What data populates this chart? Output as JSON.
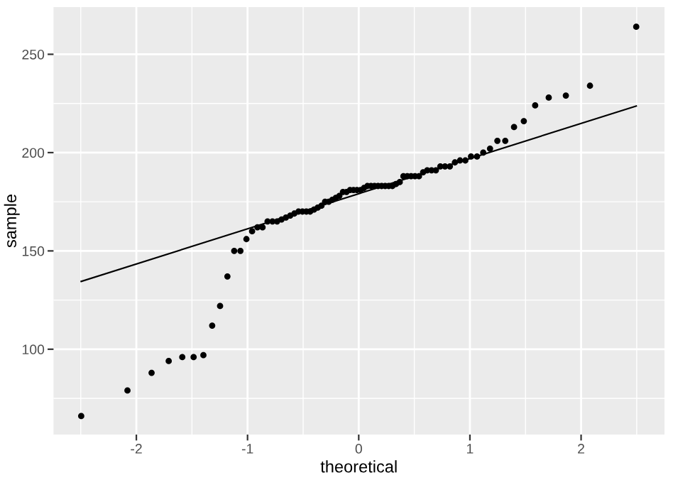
{
  "chart_data": {
    "type": "scatter",
    "xlabel": "theoretical",
    "ylabel": "sample",
    "xlim": [
      -2.745,
      2.75
    ],
    "ylim": [
      56.6,
      274
    ],
    "xticks": [
      {
        "value": -2.5,
        "label": null
      },
      -2,
      {
        "value": -1.5,
        "label": null
      },
      -1,
      {
        "value": -0.5,
        "label": null
      },
      0,
      {
        "value": 0.5,
        "label": null
      },
      1,
      {
        "value": 1.5,
        "label": null
      },
      2,
      {
        "value": 2.5,
        "label": null
      }
    ],
    "yticks": [
      {
        "value": 75,
        "label": null
      },
      100,
      {
        "value": 125,
        "label": null
      },
      150,
      {
        "value": 175,
        "label": null
      },
      200,
      {
        "value": 225,
        "label": null
      },
      250
    ],
    "grid": true,
    "series": [
      {
        "marker": "circle",
        "color": "#000000",
        "x": [
          -2.496,
          -2.08,
          -1.863,
          -1.709,
          -1.587,
          -1.485,
          -1.397,
          -1.318,
          -1.247,
          -1.181,
          -1.12,
          -1.064,
          -1.01,
          -0.959,
          -0.911,
          -0.865,
          -0.82,
          -0.776,
          -0.734,
          -0.694,
          -0.655,
          -0.616,
          -0.579,
          -0.542,
          -0.506,
          -0.471,
          -0.437,
          -0.402,
          -0.369,
          -0.335,
          -0.303,
          -0.27,
          -0.238,
          -0.206,
          -0.174,
          -0.142,
          -0.11,
          -0.078,
          -0.047,
          -0.016,
          0.016,
          0.047,
          0.078,
          0.11,
          0.142,
          0.174,
          0.206,
          0.238,
          0.27,
          0.303,
          0.335,
          0.369,
          0.402,
          0.437,
          0.471,
          0.506,
          0.542,
          0.579,
          0.616,
          0.655,
          0.694,
          0.734,
          0.776,
          0.82,
          0.865,
          0.911,
          0.959,
          1.01,
          1.064,
          1.12,
          1.181,
          1.247,
          1.318,
          1.397,
          1.485,
          1.587,
          1.709,
          1.863,
          2.08,
          2.496
        ],
        "values": [
          66,
          79,
          88,
          94,
          96,
          96,
          97,
          112,
          122,
          137,
          150,
          150,
          156,
          160,
          162,
          162,
          165,
          165,
          165,
          166,
          167,
          168,
          169,
          170,
          170,
          170,
          170,
          171,
          172,
          173,
          175,
          175,
          176,
          177,
          178,
          180,
          180,
          181,
          181,
          181,
          181,
          182,
          183,
          183,
          183,
          183,
          183,
          183,
          183,
          183,
          184,
          185,
          188,
          188,
          188,
          188,
          188,
          190,
          191,
          191,
          191,
          193,
          193,
          193,
          195,
          196,
          196,
          198,
          198,
          200,
          202,
          206,
          206,
          213,
          216,
          224,
          228,
          229,
          234,
          264
        ]
      },
      {
        "type": "line",
        "color": "#000000",
        "x": [
          -2.496,
          2.496
        ],
        "values": [
          134.5,
          223.7
        ]
      }
    ]
  }
}
